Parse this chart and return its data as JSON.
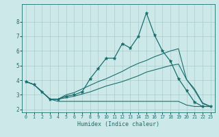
{
  "xlabel": "Humidex (Indice chaleur)",
  "background_color": "#cce8e8",
  "grid_color": "#aacccc",
  "line_color": "#1a6e6e",
  "xlim": [
    -0.5,
    23.5
  ],
  "ylim": [
    1.8,
    9.2
  ],
  "yticks": [
    2,
    3,
    4,
    5,
    6,
    7,
    8
  ],
  "xticks": [
    0,
    1,
    2,
    3,
    4,
    5,
    6,
    7,
    8,
    9,
    10,
    11,
    12,
    13,
    14,
    15,
    16,
    17,
    18,
    19,
    20,
    21,
    22,
    23
  ],
  "line1_x": [
    0,
    1,
    2,
    3,
    4,
    5,
    6,
    7,
    8,
    9,
    10,
    11,
    12,
    13,
    14,
    15,
    16,
    17,
    18,
    19,
    20,
    21,
    22,
    23
  ],
  "line1_y": [
    3.9,
    3.7,
    3.2,
    2.7,
    2.7,
    2.9,
    3.0,
    3.2,
    4.1,
    4.8,
    5.5,
    5.5,
    6.5,
    6.2,
    7.0,
    8.6,
    7.1,
    6.0,
    5.3,
    4.1,
    3.3,
    2.5,
    2.2,
    2.2
  ],
  "line2_x": [
    0,
    1,
    2,
    3,
    4,
    5,
    6,
    7,
    8,
    9,
    10,
    11,
    12,
    13,
    14,
    15,
    16,
    17,
    18,
    19,
    20,
    21,
    22,
    23
  ],
  "line2_y": [
    3.9,
    3.7,
    3.2,
    2.7,
    2.55,
    2.55,
    2.55,
    2.55,
    2.55,
    2.55,
    2.55,
    2.55,
    2.55,
    2.55,
    2.55,
    2.55,
    2.55,
    2.55,
    2.55,
    2.55,
    2.3,
    2.2,
    2.2,
    2.2
  ],
  "line3_x": [
    0,
    1,
    2,
    3,
    4,
    5,
    6,
    7,
    8,
    9,
    10,
    11,
    12,
    13,
    14,
    15,
    16,
    17,
    18,
    19,
    20,
    21,
    22,
    23
  ],
  "line3_y": [
    3.9,
    3.7,
    3.2,
    2.7,
    2.7,
    3.0,
    3.15,
    3.4,
    3.65,
    3.9,
    4.1,
    4.35,
    4.6,
    4.9,
    5.15,
    5.35,
    5.6,
    5.8,
    6.0,
    6.15,
    4.05,
    3.4,
    2.45,
    2.2
  ],
  "line4_x": [
    0,
    1,
    2,
    3,
    4,
    5,
    6,
    7,
    8,
    9,
    10,
    11,
    12,
    13,
    14,
    15,
    16,
    17,
    18,
    19,
    20,
    21,
    22,
    23
  ],
  "line4_y": [
    3.9,
    3.7,
    3.2,
    2.7,
    2.7,
    2.8,
    2.9,
    3.05,
    3.2,
    3.4,
    3.6,
    3.75,
    3.9,
    4.1,
    4.3,
    4.55,
    4.7,
    4.85,
    5.0,
    5.1,
    4.05,
    3.3,
    2.4,
    2.2
  ]
}
